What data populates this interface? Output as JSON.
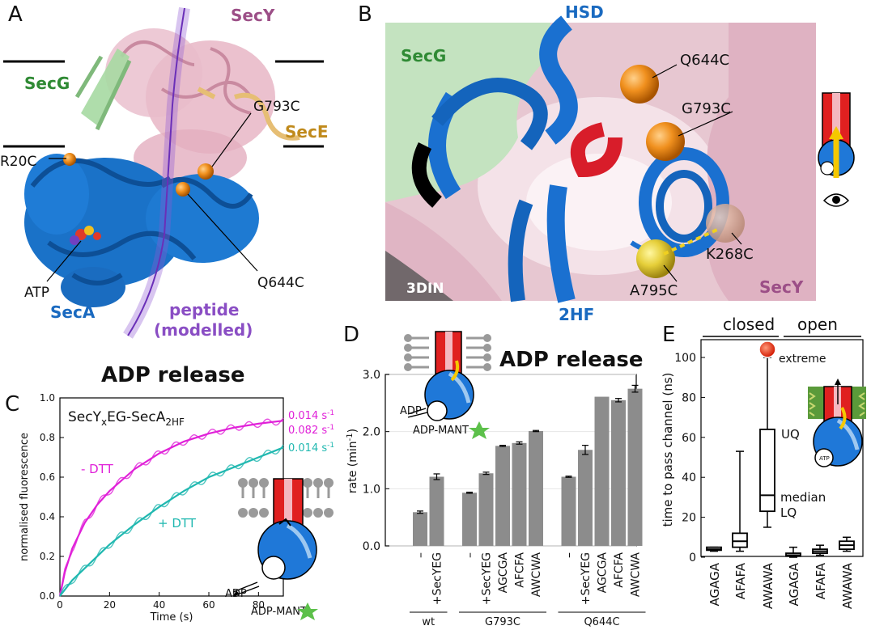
{
  "panels": {
    "A": {
      "letter": "A",
      "labels": {
        "secy": "SecY",
        "secg": "SecG",
        "sece": "SecE",
        "seca": "SecA",
        "atp": "ATP",
        "peptide": "peptide",
        "modelled": "(modelled)",
        "r20c": "R20C",
        "g793c": "G793C",
        "q644c": "Q644C"
      }
    },
    "B": {
      "letter": "B",
      "labels": {
        "hsd": "HSD",
        "secg": "SecG",
        "q644c": "Q644C",
        "g793c": "G793C",
        "k268c": "K268C",
        "a795c": "A795C",
        "secy": "SecY",
        "pdb": "3DIN",
        "twohf": "2HF"
      }
    },
    "C": {
      "letter": "C",
      "title": "ADP release",
      "inset_title_main": "SecY",
      "inset_title_sub1": "x",
      "inset_title_mid": "EG-SecA",
      "inset_title_sub2": "2HF",
      "rates": {
        "r1": "0.014 s",
        "r2": "0.082 s",
        "r3": "0.014 s",
        "exp": "-1"
      },
      "series_labels": {
        "minus": "- DTT",
        "plus": "+ DTT"
      },
      "schematic": {
        "adp": "ADP",
        "adp_mant": "ADP-MANT"
      },
      "chart_data": {
        "type": "line",
        "xlabel": "Time (s)",
        "ylabel": "normalised fluorescence",
        "xlim": [
          0,
          90
        ],
        "ylim": [
          0,
          1.0
        ],
        "xticks": [
          0,
          20,
          40,
          60,
          80
        ],
        "yticks": [
          0.0,
          0.2,
          0.4,
          0.6,
          0.8,
          1.0
        ],
        "series": [
          {
            "name": "- DTT",
            "color": "#e020d8",
            "x": [
              0,
              2,
              5,
              10,
              15,
              20,
              30,
              40,
              50,
              60,
              70,
              80,
              90
            ],
            "y": [
              0.0,
              0.12,
              0.24,
              0.37,
              0.46,
              0.53,
              0.64,
              0.72,
              0.78,
              0.82,
              0.85,
              0.87,
              0.885
            ]
          },
          {
            "name": "+ DTT",
            "color": "#20b8b0",
            "x": [
              0,
              5,
              10,
              20,
              30,
              40,
              50,
              60,
              70,
              80,
              90
            ],
            "y": [
              0.0,
              0.08,
              0.14,
              0.26,
              0.36,
              0.45,
              0.53,
              0.6,
              0.65,
              0.7,
              0.75
            ]
          }
        ]
      }
    },
    "D": {
      "letter": "D",
      "title": "ADP release",
      "schematic": {
        "adp": "ADP",
        "adp_mant": "ADP-MANT"
      },
      "chart_data": {
        "type": "bar",
        "ylabel_main": "rate (min",
        "ylabel_exp": "-1",
        "ylabel_end": ")",
        "ylim": [
          0,
          3.0
        ],
        "yticks": [
          "0.0",
          "1.0",
          "2.0",
          "3.0"
        ],
        "categories": [
          "–",
          "+SecYEG",
          "–",
          "+SecYEG",
          "AGCGA",
          "AFCFA",
          "AWCWA",
          "–",
          "+SecYEG",
          "AGCGA",
          "AFCFA",
          "AWCWA"
        ],
        "values": [
          0.59,
          1.21,
          0.93,
          1.27,
          1.75,
          1.8,
          2.01,
          1.21,
          1.68,
          2.61,
          2.55,
          2.75
        ],
        "errors": [
          0.02,
          0.05,
          0.01,
          0.02,
          0.01,
          0.02,
          0.01,
          0.01,
          0.08,
          0.0,
          0.03,
          0.06
        ],
        "groups": [
          {
            "name": "wt",
            "count": 2
          },
          {
            "name": "G793C",
            "count": 5
          },
          {
            "name": "Q644C",
            "count": 5
          }
        ]
      }
    },
    "E": {
      "letter": "E",
      "header_closed": "closed",
      "header_open": "open",
      "annotations": {
        "extreme": "extreme",
        "uq": "UQ",
        "median": "median",
        "lq": "LQ",
        "atp": "ATP"
      },
      "chart_data": {
        "type": "box",
        "ylabel": "time to pass channel (ns)",
        "ylim": [
          0,
          100
        ],
        "yticks": [
          0,
          20,
          40,
          60,
          80,
          100
        ],
        "categories": [
          "AGAGA",
          "AFAFA",
          "AWAWA",
          "AGAGA",
          "AFAFA",
          "AWAWA"
        ],
        "boxes": [
          {
            "min": 3,
            "q1": 3.5,
            "median": 4,
            "q3": 5,
            "max": 5
          },
          {
            "min": 3,
            "q1": 5,
            "median": 8,
            "q3": 12,
            "max": 53
          },
          {
            "min": 15,
            "q1": 23,
            "median": 31,
            "q3": 64,
            "max": 100,
            "outlier": 105
          },
          {
            "min": 0,
            "q1": 0.5,
            "median": 1,
            "q3": 2,
            "max": 5
          },
          {
            "min": 1,
            "q1": 2,
            "median": 3,
            "q3": 4,
            "max": 6
          },
          {
            "min": 3,
            "q1": 4,
            "median": 6,
            "q3": 8,
            "max": 10
          }
        ]
      }
    }
  }
}
